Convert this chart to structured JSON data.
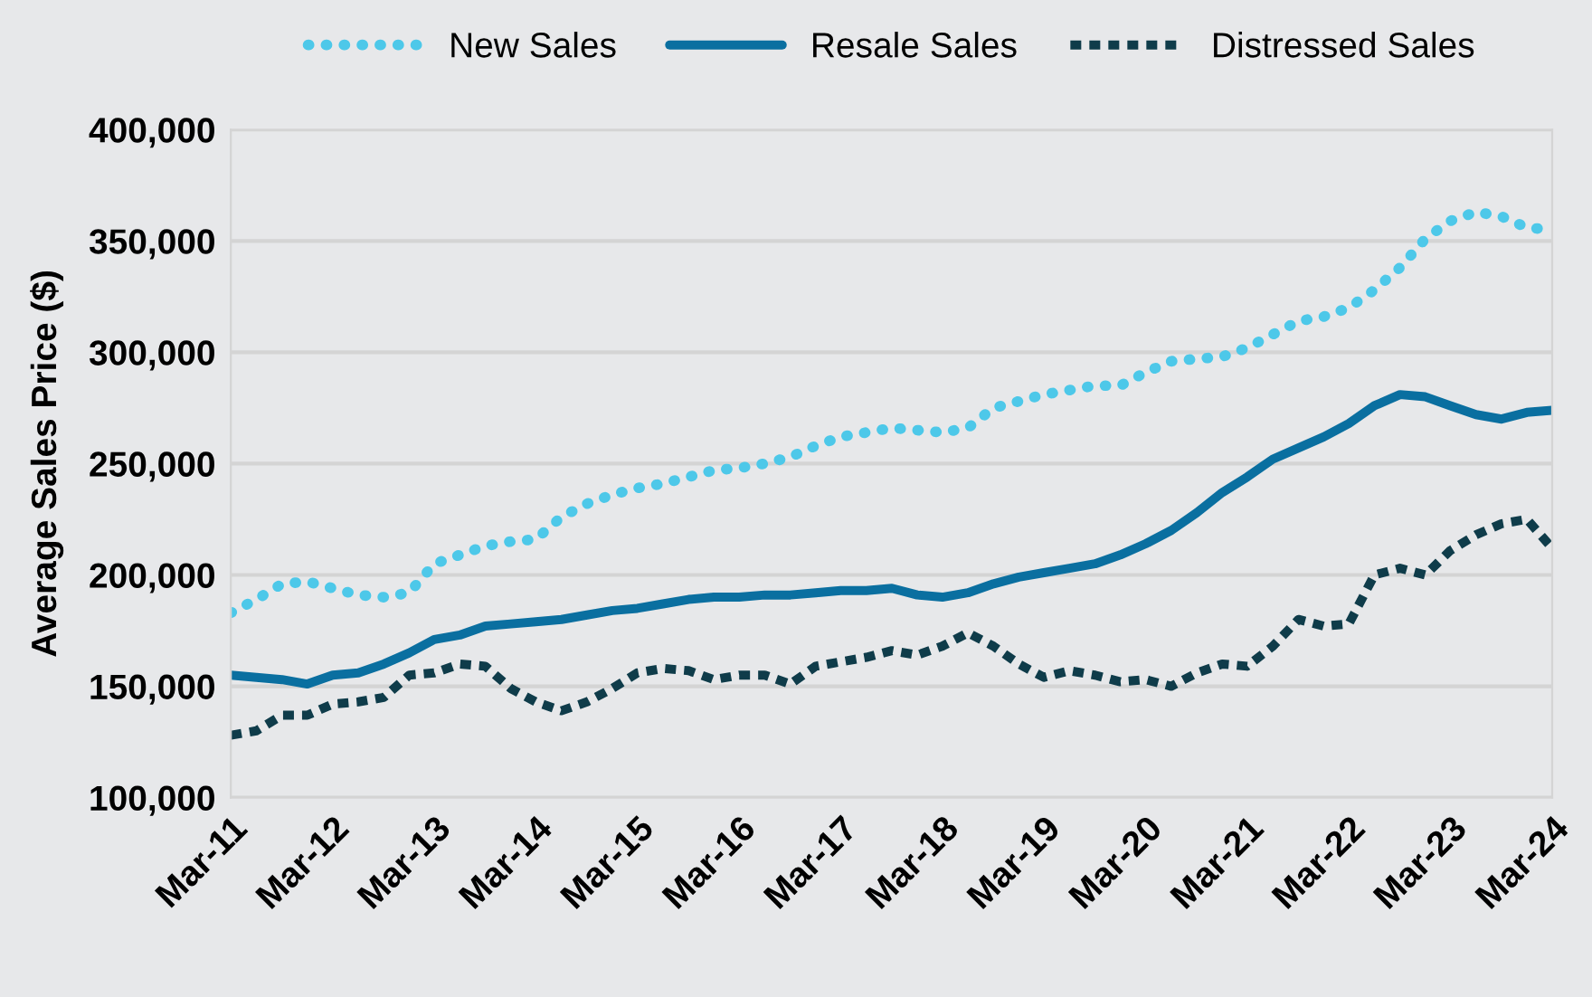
{
  "chart_data": {
    "type": "line",
    "ylabel": "Average Sales Price ($)",
    "x": [
      "2011-03",
      "2011-06",
      "2011-09",
      "2011-12",
      "2012-03",
      "2012-06",
      "2012-09",
      "2012-12",
      "2013-03",
      "2013-06",
      "2013-09",
      "2013-12",
      "2014-03",
      "2014-06",
      "2014-09",
      "2014-12",
      "2015-03",
      "2015-06",
      "2015-09",
      "2015-12",
      "2016-03",
      "2016-06",
      "2016-09",
      "2016-12",
      "2017-03",
      "2017-06",
      "2017-09",
      "2017-12",
      "2018-03",
      "2018-06",
      "2018-09",
      "2018-12",
      "2019-03",
      "2019-06",
      "2019-09",
      "2019-12",
      "2020-03",
      "2020-06",
      "2020-09",
      "2020-12",
      "2021-03",
      "2021-06",
      "2021-09",
      "2021-12",
      "2022-03",
      "2022-06",
      "2022-09",
      "2022-12",
      "2023-03",
      "2023-06",
      "2023-09",
      "2023-12",
      "2024-03"
    ],
    "series": [
      {
        "name": "New Sales",
        "color": "#4dc8e9",
        "line_style": "dotted",
        "values": [
          183000,
          189000,
          196000,
          197000,
          194000,
          191000,
          190000,
          192000,
          205000,
          209000,
          213000,
          215000,
          216000,
          226000,
          232000,
          236000,
          239000,
          241000,
          244000,
          247000,
          248000,
          250000,
          253000,
          258000,
          262000,
          264000,
          266000,
          265000,
          264000,
          266000,
          275000,
          278000,
          281000,
          283000,
          285000,
          285000,
          291000,
          296000,
          297000,
          298000,
          302000,
          308000,
          314000,
          316000,
          320000,
          328000,
          338000,
          351000,
          359000,
          363000,
          361000,
          356000,
          355000
        ]
      },
      {
        "name": "Resale Sales",
        "color": "#0a6fa0",
        "line_style": "solid",
        "values": [
          155000,
          154000,
          153000,
          151000,
          155000,
          156000,
          160000,
          165000,
          171000,
          173000,
          177000,
          178000,
          179000,
          180000,
          182000,
          184000,
          185000,
          187000,
          189000,
          190000,
          190000,
          191000,
          191000,
          192000,
          193000,
          193000,
          194000,
          191000,
          190000,
          192000,
          196000,
          199000,
          201000,
          203000,
          205000,
          209000,
          214000,
          220000,
          228000,
          237000,
          244000,
          252000,
          257000,
          262000,
          268000,
          276000,
          281000,
          280000,
          276000,
          272000,
          270000,
          273000,
          274000
        ]
      },
      {
        "name": "Distressed Sales",
        "color": "#0f3c4a",
        "line_style": "dashed",
        "values": [
          128000,
          130000,
          137000,
          137000,
          142000,
          143000,
          145000,
          155000,
          156000,
          160000,
          159000,
          149000,
          143000,
          139000,
          143000,
          149000,
          156000,
          158000,
          157000,
          153000,
          155000,
          155000,
          151000,
          159000,
          161000,
          163000,
          166000,
          164000,
          168000,
          174000,
          168000,
          160000,
          154000,
          157000,
          155000,
          152000,
          153000,
          150000,
          156000,
          160000,
          159000,
          168000,
          180000,
          177000,
          178000,
          200000,
          203000,
          200000,
          211000,
          218000,
          223000,
          225000,
          212000
        ]
      }
    ],
    "xlim": [
      "2011-03",
      "2024-03"
    ],
    "xticks": [
      {
        "value": "2011-03",
        "label": "Mar-11"
      },
      {
        "value": "2012-03",
        "label": "Mar-12"
      },
      {
        "value": "2013-03",
        "label": "Mar-13"
      },
      {
        "value": "2014-03",
        "label": "Mar-14"
      },
      {
        "value": "2015-03",
        "label": "Mar-15"
      },
      {
        "value": "2016-03",
        "label": "Mar-16"
      },
      {
        "value": "2017-03",
        "label": "Mar-17"
      },
      {
        "value": "2018-03",
        "label": "Mar-18"
      },
      {
        "value": "2019-03",
        "label": "Mar-19"
      },
      {
        "value": "2020-03",
        "label": "Mar-20"
      },
      {
        "value": "2021-03",
        "label": "Mar-21"
      },
      {
        "value": "2022-03",
        "label": "Mar-22"
      },
      {
        "value": "2023-03",
        "label": "Mar-23"
      },
      {
        "value": "2024-03",
        "label": "Mar-24"
      }
    ],
    "ylim": [
      100000,
      400000
    ],
    "yticks": [
      {
        "value": 100000,
        "label": "100,000"
      },
      {
        "value": 150000,
        "label": "150,000"
      },
      {
        "value": 200000,
        "label": "200,000"
      },
      {
        "value": 250000,
        "label": "250,000"
      },
      {
        "value": 300000,
        "label": "300,000"
      },
      {
        "value": 350000,
        "label": "350,000"
      },
      {
        "value": 400000,
        "label": "400,000"
      }
    ],
    "grid": "y",
    "legend": "top",
    "marker": "none"
  }
}
